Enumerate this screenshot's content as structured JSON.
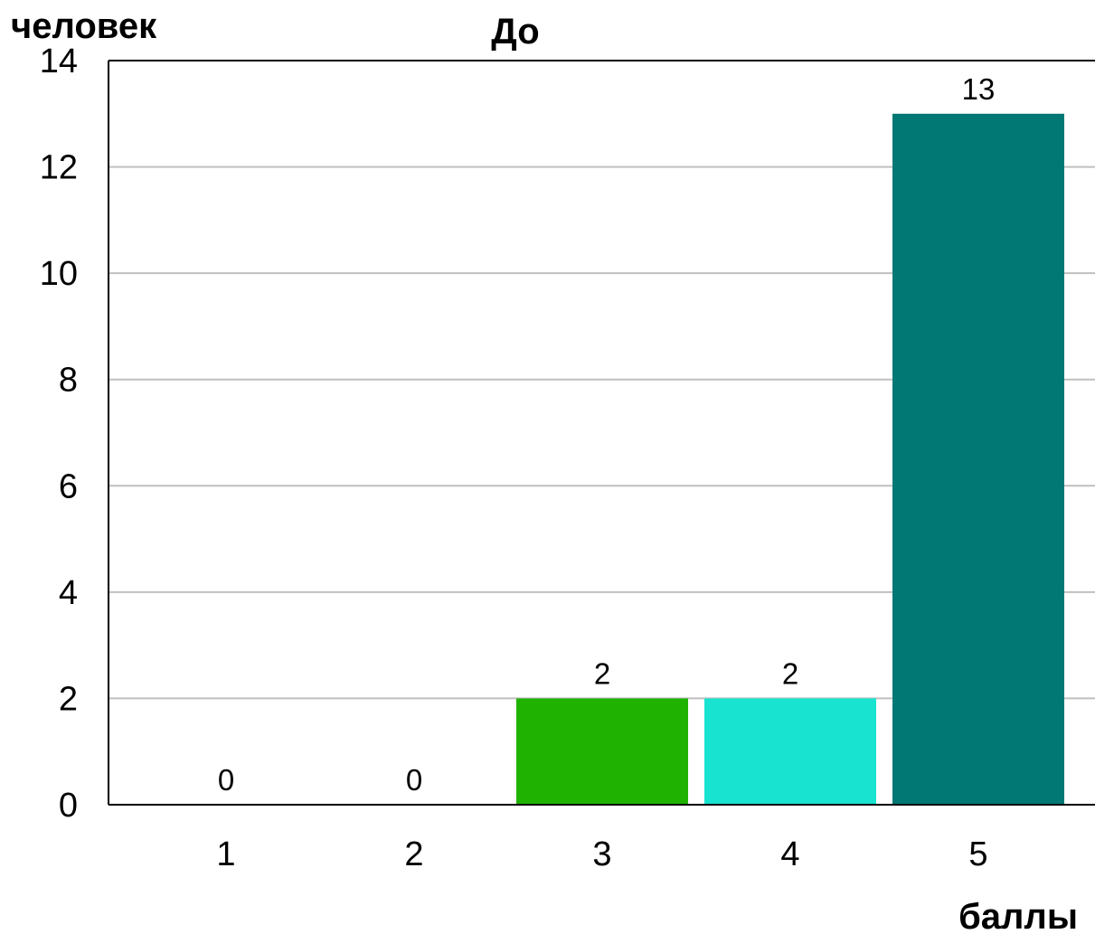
{
  "chart_data": {
    "type": "bar",
    "title": "До",
    "ylabel": "человек",
    "xlabel": "баллы",
    "categories": [
      "1",
      "2",
      "3",
      "4",
      "5"
    ],
    "values": [
      0,
      0,
      2,
      2,
      13
    ],
    "data_labels": [
      "0",
      "0",
      "2",
      "2",
      "13"
    ],
    "bar_colors": [
      "#1fb200",
      "#1fb200",
      "#1fb200",
      "#17e3d0",
      "#017873"
    ],
    "ylim": [
      0,
      14
    ],
    "yticks": [
      "0",
      "2",
      "4",
      "6",
      "8",
      "10",
      "12",
      "14"
    ],
    "grid": true,
    "legend": "none"
  }
}
